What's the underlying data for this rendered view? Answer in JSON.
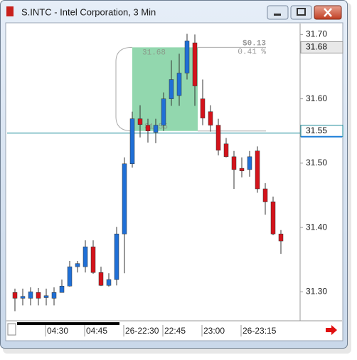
{
  "window": {
    "title": "S.INTC - Intel Corporation, 3 Min"
  },
  "chart_data": {
    "type": "candlestick",
    "categories": [
      null,
      null,
      null,
      null,
      "04:30",
      null,
      null,
      null,
      null,
      "04:45",
      null,
      null,
      null,
      null,
      "26-22:30",
      null,
      null,
      null,
      null,
      "22:45",
      null,
      null,
      null,
      null,
      "23:00",
      null,
      null,
      null,
      null,
      "26-23:15",
      null,
      null,
      null,
      null,
      null
    ],
    "open": [
      31.299,
      31.29,
      31.29,
      31.299,
      31.291,
      31.29,
      31.299,
      31.309,
      31.339,
      31.339,
      31.37,
      31.33,
      31.31,
      31.319,
      31.39,
      31.499,
      31.569,
      31.559,
      31.548,
      31.559,
      31.6,
      31.605,
      31.64,
      31.687,
      31.6,
      31.58,
      31.559,
      31.53,
      31.51,
      31.492,
      31.49,
      31.519,
      31.46,
      31.44,
      31.39
    ],
    "high": [
      31.305,
      31.305,
      31.307,
      31.306,
      31.305,
      31.307,
      31.319,
      31.348,
      31.348,
      31.38,
      31.38,
      31.339,
      31.329,
      31.401,
      31.509,
      31.58,
      31.59,
      31.569,
      31.569,
      31.61,
      31.66,
      31.67,
      31.701,
      31.7,
      31.63,
      31.59,
      31.569,
      31.539,
      31.519,
      31.509,
      31.519,
      31.526,
      31.469,
      31.448,
      31.396
    ],
    "low": [
      31.27,
      31.279,
      31.279,
      31.279,
      31.279,
      31.279,
      31.299,
      31.308,
      31.33,
      31.33,
      31.328,
      31.309,
      31.308,
      31.31,
      31.329,
      31.493,
      31.54,
      31.532,
      31.531,
      31.55,
      31.589,
      31.589,
      31.63,
      31.589,
      31.559,
      31.549,
      31.512,
      31.509,
      31.46,
      31.478,
      31.479,
      31.454,
      31.42,
      31.388,
      31.359
    ],
    "close": [
      31.29,
      31.293,
      31.3,
      31.29,
      31.294,
      31.299,
      31.309,
      31.339,
      31.344,
      31.37,
      31.33,
      31.31,
      31.319,
      31.39,
      31.499,
      31.569,
      31.56,
      31.55,
      31.559,
      31.6,
      31.63,
      31.64,
      31.69,
      31.62,
      31.57,
      31.559,
      31.52,
      31.51,
      31.49,
      31.488,
      31.51,
      31.46,
      31.44,
      31.39,
      31.379
    ],
    "up_color": "#1f6fd6",
    "down_color": "#d4131b",
    "ylim": [
      31.255,
      31.717
    ],
    "yticks": [
      {
        "value": 31.3,
        "label": "31.30"
      },
      {
        "value": 31.4,
        "label": "31.40"
      },
      {
        "value": 31.5,
        "label": "31.50"
      },
      {
        "value": 31.6,
        "label": "31.60"
      },
      {
        "value": 31.7,
        "label": "31.70"
      }
    ],
    "price_lines": [
      {
        "value": 31.68,
        "label": "31.68",
        "color": "#9a9a9a"
      },
      {
        "value": 31.55,
        "label": "31.55",
        "color": "#1a8a99"
      }
    ],
    "measure": {
      "from": {
        "value": 31.55,
        "label": "31.55"
      },
      "to": {
        "value": 31.68,
        "label": "31.68"
      },
      "change": {
        "value": 0.13,
        "label": "$0.13"
      },
      "percent": {
        "value": 0.41,
        "label": "0.41 %"
      },
      "color": "#7fd0a0"
    }
  }
}
